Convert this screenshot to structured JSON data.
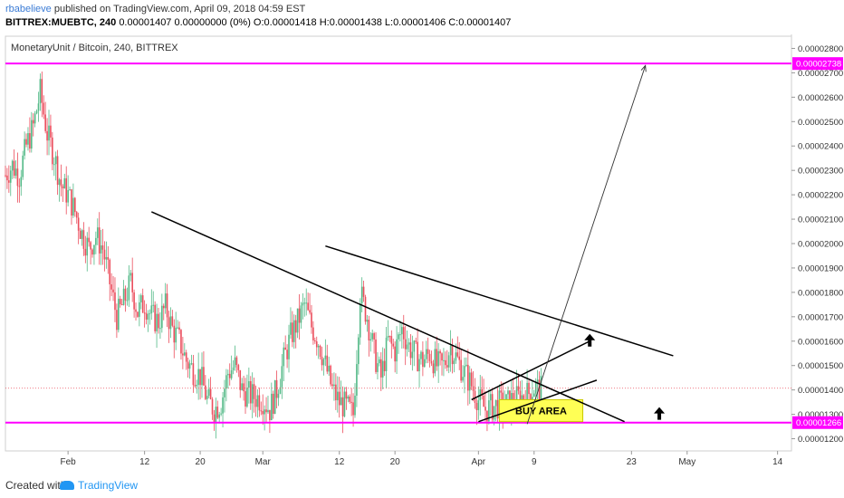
{
  "header": {
    "publisher": "rbabelieve",
    "published_text": "published on TradingView.com, April 09, 2018 04:59 EST",
    "symbol": "BITTREX:MUEBTC, 240",
    "ohlc": "0.00001407 0.00000000 (0%) O:0.00001418 H:0.00001438 L:0.00001406 C:0.00001407"
  },
  "chart_title": "MonetaryUnit / Bitcoin, 240, BITTREX",
  "footer": {
    "created_with": "Created with",
    "brand": "TradingView"
  },
  "colors": {
    "up": "#53b987",
    "down": "#eb4d5c",
    "level": "#ff00ff",
    "trend": "#000000",
    "buy_area": "#ffff55"
  },
  "chart_data": {
    "type": "candlestick",
    "title": "MonetaryUnit / Bitcoin, 240, BITTREX",
    "y_ticks": [
      "0.00002800",
      "0.00002700",
      "0.00002600",
      "0.00002500",
      "0.00002400",
      "0.00002300",
      "0.00002200",
      "0.00002100",
      "0.00002000",
      "0.00001900",
      "0.00001800",
      "0.00001700",
      "0.00001600",
      "0.00001500",
      "0.00001400",
      "0.00001300",
      "0.00001200"
    ],
    "ylim": [
      1.15e-05,
      2.85e-05
    ],
    "x_ticks": [
      "Feb",
      "12",
      "20",
      "Mar",
      "12",
      "20",
      "Apr",
      "9",
      "23",
      "May",
      "14"
    ],
    "x_days": [
      0,
      11,
      19,
      28,
      39,
      47,
      59,
      67,
      81,
      89,
      102
    ],
    "x_range_days": [
      -9,
      104
    ],
    "price_path": [
      [
        -9,
        2.28e-05
      ],
      [
        -8,
        2.32e-05
      ],
      [
        -7,
        2.28e-05
      ],
      [
        -6,
        2.4e-05
      ],
      [
        -5,
        2.48e-05
      ],
      [
        -4,
        2.62e-05
      ],
      [
        -3,
        2.45e-05
      ],
      [
        -2,
        2.36e-05
      ],
      [
        -1,
        2.24e-05
      ],
      [
        0,
        2.2e-05
      ],
      [
        1,
        2.13e-05
      ],
      [
        2,
        2.04e-05
      ],
      [
        3,
        1.98e-05
      ],
      [
        4,
        2.03e-05
      ],
      [
        5,
        1.98e-05
      ],
      [
        6,
        1.84e-05
      ],
      [
        7,
        1.7e-05
      ],
      [
        8,
        1.76e-05
      ],
      [
        9,
        1.84e-05
      ],
      [
        10,
        1.72e-05
      ],
      [
        11,
        1.76e-05
      ],
      [
        12,
        1.7e-05
      ],
      [
        13,
        1.68e-05
      ],
      [
        14,
        1.74e-05
      ],
      [
        15,
        1.65e-05
      ],
      [
        16,
        1.6e-05
      ],
      [
        17,
        1.52e-05
      ],
      [
        18,
        1.48e-05
      ],
      [
        19,
        1.46e-05
      ],
      [
        20,
        1.36e-05
      ],
      [
        21,
        1.32e-05
      ],
      [
        22,
        1.35e-05
      ],
      [
        23,
        1.47e-05
      ],
      [
        24,
        1.5e-05
      ],
      [
        25,
        1.4e-05
      ],
      [
        26,
        1.38e-05
      ],
      [
        27,
        1.37e-05
      ],
      [
        28,
        1.36e-05
      ],
      [
        29,
        1.32e-05
      ],
      [
        30,
        1.4e-05
      ],
      [
        31,
        1.52e-05
      ],
      [
        32,
        1.62e-05
      ],
      [
        33,
        1.68e-05
      ],
      [
        34,
        1.75e-05
      ],
      [
        35,
        1.66e-05
      ],
      [
        36,
        1.6e-05
      ],
      [
        37,
        1.5e-05
      ],
      [
        38,
        1.4e-05
      ],
      [
        39,
        1.35e-05
      ],
      [
        40,
        1.33e-05
      ],
      [
        41,
        1.3e-05
      ],
      [
        42,
        1.8e-05
      ],
      [
        43,
        1.7e-05
      ],
      [
        44,
        1.55e-05
      ],
      [
        45,
        1.45e-05
      ],
      [
        46,
        1.6e-05
      ],
      [
        47,
        1.56e-05
      ],
      [
        48,
        1.65e-05
      ],
      [
        49,
        1.58e-05
      ],
      [
        50,
        1.54e-05
      ],
      [
        51,
        1.52e-05
      ],
      [
        52,
        1.55e-05
      ],
      [
        53,
        1.5e-05
      ],
      [
        54,
        1.5e-05
      ],
      [
        55,
        1.58e-05
      ],
      [
        56,
        1.52e-05
      ],
      [
        57,
        1.47e-05
      ],
      [
        58,
        1.42e-05
      ],
      [
        59,
        1.36e-05
      ],
      [
        60,
        1.32e-05
      ],
      [
        61,
        1.33e-05
      ],
      [
        62,
        1.34e-05
      ],
      [
        63,
        1.34e-05
      ],
      [
        64,
        1.36e-05
      ],
      [
        65,
        1.37e-05
      ],
      [
        66,
        1.38e-05
      ],
      [
        67,
        1.41e-05
      ],
      [
        68,
        1.4e-05
      ]
    ],
    "horizontal_levels": [
      {
        "value": 2.738e-05,
        "label": "0.00002738"
      },
      {
        "value": 1.266e-05,
        "label": "0.00001266"
      }
    ],
    "current_price": 1.407e-05,
    "annotations": [
      {
        "type": "rectangle",
        "label": "BUY AREA",
        "x_days": [
          62,
          74
        ],
        "y": [
          1.27e-05,
          1.36e-05
        ]
      },
      {
        "type": "arrow_up",
        "x_day": 75,
        "y": 1.6e-05
      },
      {
        "type": "arrow_up",
        "x_day": 85,
        "y": 1.3e-05
      }
    ],
    "trend_lines": [
      {
        "from": [
          12,
          2.13e-05
        ],
        "to": [
          80,
          1.27e-05
        ]
      },
      {
        "from": [
          37,
          1.99e-05
        ],
        "to": [
          87,
          1.54e-05
        ]
      },
      {
        "from": [
          58,
          1.36e-05
        ],
        "to": [
          75,
          1.6e-05
        ]
      },
      {
        "from": [
          59,
          1.27e-05
        ],
        "to": [
          76,
          1.44e-05
        ]
      }
    ],
    "projection_arrow": {
      "from": [
        66,
        1.26e-05
      ],
      "to": [
        83,
        2.73e-05
      ]
    }
  }
}
